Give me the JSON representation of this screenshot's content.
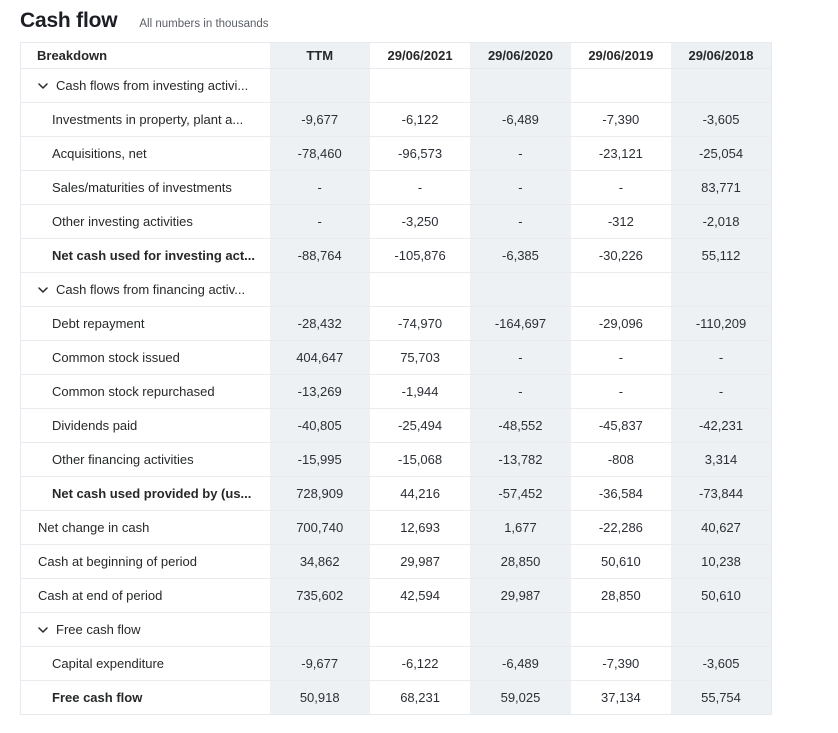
{
  "page": {
    "title": "Cash flow",
    "subtitle": "All numbers in thousands"
  },
  "colors": {
    "column_shade": "#eef1f4",
    "border": "#e6e9ed",
    "text": "#26282a",
    "title_text": "#1b1f24",
    "subtitle_text": "#5b5f66"
  },
  "icons": {
    "section_toggle": "chevron-down-icon"
  },
  "table": {
    "columns": [
      "Breakdown",
      "TTM",
      "29/06/2021",
      "29/06/2020",
      "29/06/2019",
      "29/06/2018"
    ],
    "rows": [
      {
        "type": "section",
        "label": "Cash flows from investing activi...",
        "values": [
          "",
          "",
          "",
          "",
          ""
        ]
      },
      {
        "type": "item",
        "label": "Investments in property, plant a...",
        "values": [
          "-9,677",
          "-6,122",
          "-6,489",
          "-7,390",
          "-3,605"
        ]
      },
      {
        "type": "item",
        "label": "Acquisitions, net",
        "values": [
          "-78,460",
          "-96,573",
          "-",
          "-23,121",
          "-25,054"
        ]
      },
      {
        "type": "item",
        "label": "Sales/maturities of investments",
        "values": [
          "-",
          "-",
          "-",
          "-",
          "83,771"
        ]
      },
      {
        "type": "item",
        "label": "Other investing activities",
        "values": [
          "-",
          "-3,250",
          "-",
          "-312",
          "-2,018"
        ]
      },
      {
        "type": "total",
        "label": "Net cash used for investing act...",
        "values": [
          "-88,764",
          "-105,876",
          "-6,385",
          "-30,226",
          "55,112"
        ]
      },
      {
        "type": "section",
        "label": "Cash flows from financing activ...",
        "values": [
          "",
          "",
          "",
          "",
          ""
        ]
      },
      {
        "type": "item",
        "label": "Debt repayment",
        "values": [
          "-28,432",
          "-74,970",
          "-164,697",
          "-29,096",
          "-110,209"
        ]
      },
      {
        "type": "item",
        "label": "Common stock issued",
        "values": [
          "404,647",
          "75,703",
          "-",
          "-",
          "-"
        ]
      },
      {
        "type": "item",
        "label": "Common stock repurchased",
        "values": [
          "-13,269",
          "-1,944",
          "-",
          "-",
          "-"
        ]
      },
      {
        "type": "item",
        "label": "Dividends paid",
        "values": [
          "-40,805",
          "-25,494",
          "-48,552",
          "-45,837",
          "-42,231"
        ]
      },
      {
        "type": "item",
        "label": "Other financing activities",
        "values": [
          "-15,995",
          "-15,068",
          "-13,782",
          "-808",
          "3,314"
        ]
      },
      {
        "type": "total",
        "label": "Net cash used provided by (us...",
        "values": [
          "728,909",
          "44,216",
          "-57,452",
          "-36,584",
          "-73,844"
        ]
      },
      {
        "type": "plain",
        "label": "Net change in cash",
        "values": [
          "700,740",
          "12,693",
          "1,677",
          "-22,286",
          "40,627"
        ]
      },
      {
        "type": "plain",
        "label": "Cash at beginning of period",
        "values": [
          "34,862",
          "29,987",
          "28,850",
          "50,610",
          "10,238"
        ]
      },
      {
        "type": "plain",
        "label": "Cash at end of period",
        "values": [
          "735,602",
          "42,594",
          "29,987",
          "28,850",
          "50,610"
        ]
      },
      {
        "type": "section",
        "label": "Free cash flow",
        "values": [
          "",
          "",
          "",
          "",
          ""
        ]
      },
      {
        "type": "item",
        "label": "Capital expenditure",
        "values": [
          "-9,677",
          "-6,122",
          "-6,489",
          "-7,390",
          "-3,605"
        ]
      },
      {
        "type": "total",
        "label": "Free cash flow",
        "values": [
          "50,918",
          "68,231",
          "59,025",
          "37,134",
          "55,754"
        ]
      }
    ]
  }
}
